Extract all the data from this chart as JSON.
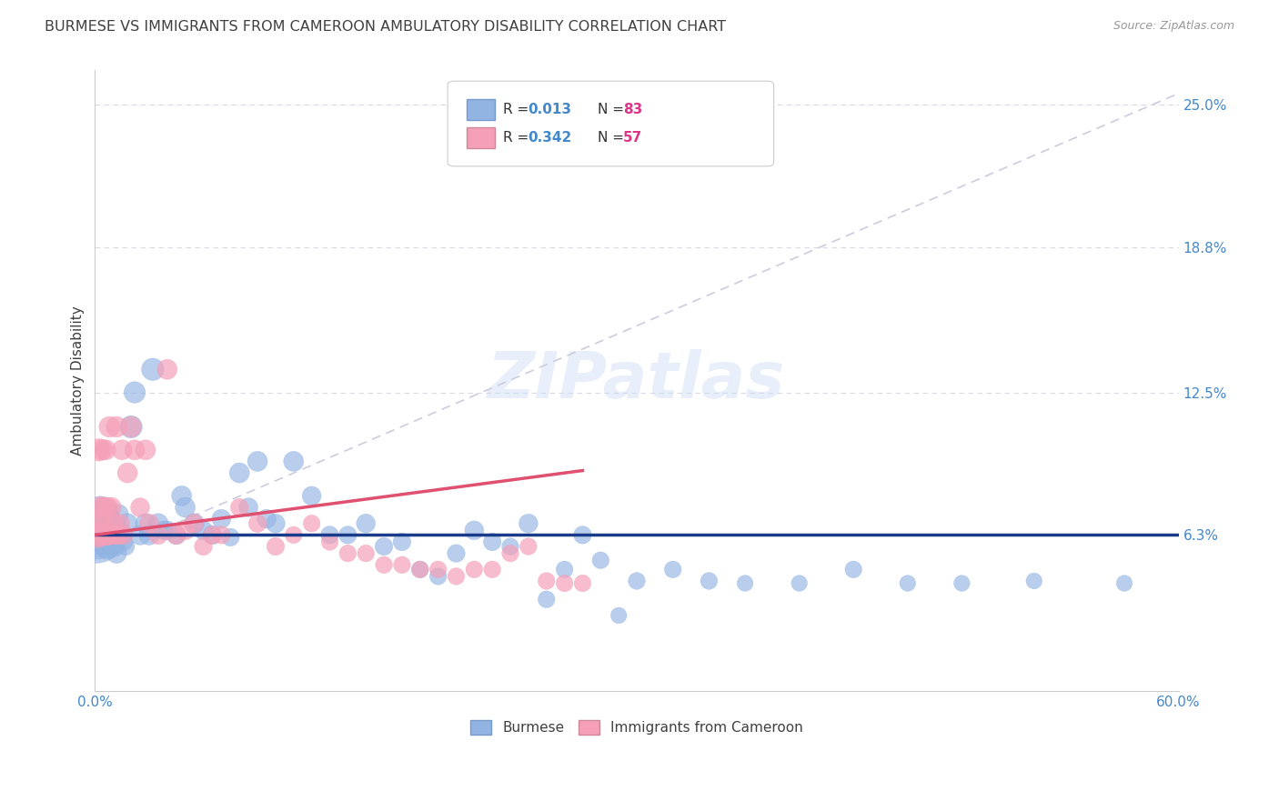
{
  "title": "BURMESE VS IMMIGRANTS FROM CAMEROON AMBULATORY DISABILITY CORRELATION CHART",
  "source": "Source: ZipAtlas.com",
  "ylabel": "Ambulatory Disability",
  "watermark": "ZIPatlas",
  "xlim": [
    0.0,
    0.6
  ],
  "ylim": [
    -0.005,
    0.265
  ],
  "xticks": [
    0.0,
    0.1,
    0.2,
    0.3,
    0.4,
    0.5,
    0.6
  ],
  "xticklabels": [
    "0.0%",
    "",
    "",
    "",
    "",
    "",
    "60.0%"
  ],
  "ytick_positions": [
    0.063,
    0.125,
    0.188,
    0.25
  ],
  "ytick_labels": [
    "6.3%",
    "12.5%",
    "18.8%",
    "25.0%"
  ],
  "burmese_color": "#92b4e3",
  "cameroon_color": "#f5a0b8",
  "burmese_line_color": "#1a3a8a",
  "cameroon_line_color": "#e05070",
  "diag_line_color": "#ccccdd",
  "grid_color": "#d8d8e8",
  "title_color": "#404040",
  "ylabel_color": "#404040",
  "tick_label_color": "#4488cc",
  "right_tick_color": "#4488cc",
  "legend_r_color": "#4488cc",
  "legend_n_color": "#dd3388",
  "background_color": "#ffffff",
  "burmese_line_y0": 0.063,
  "burmese_line_y1": 0.063,
  "cameroon_line_x0": 0.0,
  "cameroon_line_y0": 0.063,
  "cameroon_line_x1": 0.27,
  "cameroon_line_y1": 0.091,
  "diag_line_x0": 0.03,
  "diag_line_y0": 0.063,
  "diag_line_x1": 0.6,
  "diag_line_y1": 0.255,
  "burmese_x": [
    0.001,
    0.002,
    0.002,
    0.003,
    0.003,
    0.003,
    0.004,
    0.004,
    0.004,
    0.005,
    0.005,
    0.005,
    0.006,
    0.006,
    0.007,
    0.007,
    0.008,
    0.008,
    0.009,
    0.009,
    0.01,
    0.01,
    0.011,
    0.011,
    0.012,
    0.012,
    0.013,
    0.014,
    0.015,
    0.016,
    0.017,
    0.018,
    0.02,
    0.022,
    0.025,
    0.028,
    0.03,
    0.032,
    0.035,
    0.038,
    0.04,
    0.045,
    0.048,
    0.05,
    0.055,
    0.06,
    0.065,
    0.07,
    0.075,
    0.08,
    0.085,
    0.09,
    0.095,
    0.1,
    0.11,
    0.12,
    0.13,
    0.14,
    0.15,
    0.16,
    0.17,
    0.18,
    0.19,
    0.2,
    0.21,
    0.22,
    0.23,
    0.24,
    0.25,
    0.26,
    0.27,
    0.28,
    0.29,
    0.3,
    0.32,
    0.34,
    0.36,
    0.39,
    0.42,
    0.45,
    0.48,
    0.52,
    0.57
  ],
  "burmese_y": [
    0.063,
    0.063,
    0.068,
    0.063,
    0.068,
    0.072,
    0.063,
    0.065,
    0.07,
    0.062,
    0.065,
    0.068,
    0.06,
    0.065,
    0.058,
    0.063,
    0.06,
    0.065,
    0.063,
    0.068,
    0.068,
    0.065,
    0.058,
    0.063,
    0.055,
    0.065,
    0.072,
    0.065,
    0.063,
    0.06,
    0.058,
    0.068,
    0.11,
    0.125,
    0.063,
    0.068,
    0.063,
    0.135,
    0.068,
    0.065,
    0.065,
    0.063,
    0.08,
    0.075,
    0.068,
    0.065,
    0.063,
    0.07,
    0.062,
    0.09,
    0.075,
    0.095,
    0.07,
    0.068,
    0.095,
    0.08,
    0.063,
    0.063,
    0.068,
    0.058,
    0.06,
    0.048,
    0.045,
    0.055,
    0.065,
    0.06,
    0.058,
    0.068,
    0.035,
    0.048,
    0.063,
    0.052,
    0.028,
    0.043,
    0.048,
    0.043,
    0.042,
    0.042,
    0.048,
    0.042,
    0.042,
    0.043,
    0.042
  ],
  "burmese_size": [
    220,
    160,
    140,
    110,
    100,
    90,
    80,
    75,
    70,
    60,
    55,
    50,
    50,
    45,
    45,
    40,
    40,
    38,
    35,
    32,
    32,
    30,
    28,
    28,
    28,
    25,
    28,
    25,
    25,
    22,
    22,
    28,
    35,
    32,
    28,
    28,
    28,
    35,
    28,
    25,
    25,
    25,
    28,
    28,
    28,
    25,
    25,
    25,
    22,
    28,
    25,
    28,
    25,
    25,
    28,
    25,
    22,
    22,
    25,
    22,
    22,
    20,
    20,
    22,
    25,
    22,
    20,
    25,
    20,
    20,
    22,
    20,
    18,
    20,
    20,
    20,
    18,
    18,
    20,
    18,
    18,
    18,
    18
  ],
  "cameroon_x": [
    0.001,
    0.002,
    0.002,
    0.003,
    0.003,
    0.004,
    0.004,
    0.005,
    0.005,
    0.006,
    0.006,
    0.007,
    0.007,
    0.008,
    0.008,
    0.009,
    0.01,
    0.011,
    0.012,
    0.013,
    0.014,
    0.015,
    0.016,
    0.018,
    0.02,
    0.022,
    0.025,
    0.028,
    0.03,
    0.035,
    0.04,
    0.045,
    0.05,
    0.055,
    0.06,
    0.065,
    0.07,
    0.08,
    0.09,
    0.1,
    0.11,
    0.12,
    0.13,
    0.14,
    0.15,
    0.16,
    0.17,
    0.18,
    0.19,
    0.2,
    0.21,
    0.22,
    0.23,
    0.24,
    0.25,
    0.26,
    0.27
  ],
  "cameroon_y": [
    0.063,
    0.068,
    0.1,
    0.063,
    0.075,
    0.07,
    0.1,
    0.063,
    0.075,
    0.1,
    0.063,
    0.063,
    0.075,
    0.11,
    0.063,
    0.075,
    0.068,
    0.063,
    0.11,
    0.063,
    0.068,
    0.1,
    0.063,
    0.09,
    0.11,
    0.1,
    0.075,
    0.1,
    0.068,
    0.063,
    0.135,
    0.063,
    0.065,
    0.068,
    0.058,
    0.063,
    0.063,
    0.075,
    0.068,
    0.058,
    0.063,
    0.068,
    0.06,
    0.055,
    0.055,
    0.05,
    0.05,
    0.048,
    0.048,
    0.045,
    0.048,
    0.048,
    0.055,
    0.058,
    0.043,
    0.042,
    0.042
  ],
  "cameroon_size": [
    45,
    38,
    35,
    35,
    32,
    32,
    30,
    30,
    28,
    28,
    28,
    28,
    28,
    30,
    28,
    28,
    28,
    25,
    30,
    25,
    25,
    28,
    25,
    28,
    30,
    28,
    25,
    28,
    25,
    25,
    28,
    25,
    25,
    25,
    22,
    22,
    22,
    22,
    22,
    22,
    20,
    20,
    20,
    20,
    20,
    20,
    20,
    20,
    20,
    20,
    20,
    20,
    20,
    20,
    20,
    20,
    20
  ]
}
